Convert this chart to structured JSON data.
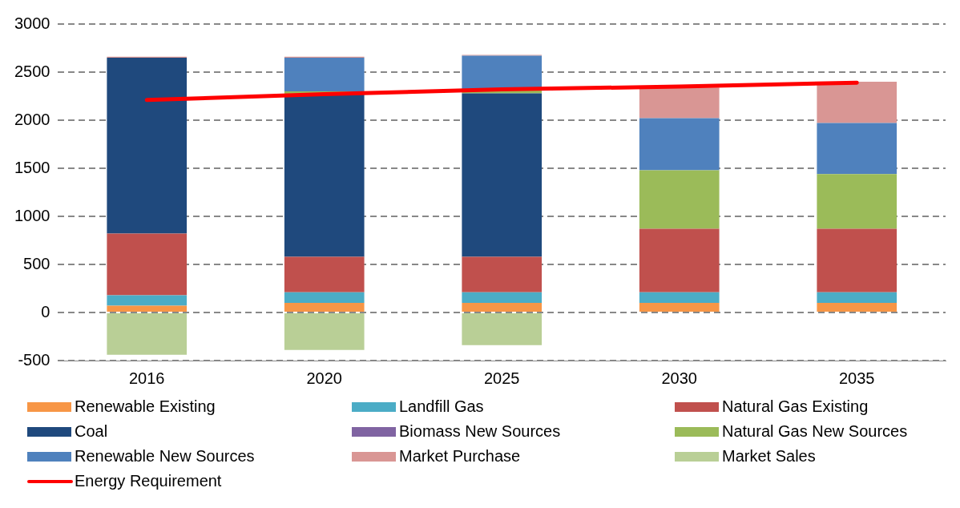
{
  "chart_data": {
    "type": "bar",
    "stacked": true,
    "categories": [
      "2016",
      "2020",
      "2025",
      "2030",
      "2035"
    ],
    "series": [
      {
        "name": "Renewable Existing",
        "color": "#f79646",
        "values": [
          70,
          100,
          100,
          100,
          100
        ]
      },
      {
        "name": "Landfill Gas",
        "color": "#4bacc6",
        "values": [
          110,
          110,
          110,
          110,
          110
        ]
      },
      {
        "name": "Natural Gas Existing",
        "color": "#c0504d",
        "values": [
          640,
          370,
          370,
          660,
          660
        ]
      },
      {
        "name": "Coal",
        "color": "#1f497d",
        "values": [
          1830,
          1690,
          1700,
          0,
          0
        ]
      },
      {
        "name": "Biomass New Sources",
        "color": "#8064a2",
        "values": [
          0,
          0,
          0,
          0,
          0
        ]
      },
      {
        "name": "Natural Gas New Sources",
        "color": "#9bbb59",
        "values": [
          0,
          30,
          30,
          610,
          570
        ]
      },
      {
        "name": "Renewable New Sources",
        "color": "#4f81bd",
        "values": [
          0,
          350,
          360,
          540,
          530
        ]
      },
      {
        "name": "Market Purchase",
        "color": "#d99694",
        "values": [
          10,
          10,
          10,
          320,
          430
        ]
      },
      {
        "name": "Market Sales",
        "color": "#b9cf96",
        "values": [
          -440,
          -390,
          -340,
          0,
          0
        ]
      },
      {
        "name": "Energy Requirement",
        "type": "line",
        "color": "#ff0000",
        "values": [
          2210,
          2270,
          2320,
          2350,
          2390
        ]
      }
    ],
    "ylim": [
      -500,
      3000
    ],
    "yticks": [
      -500,
      0,
      500,
      1000,
      1500,
      2000,
      2500,
      3000
    ],
    "grid": "y",
    "legend": "bottom",
    "marker": "none",
    "line_style": "solid"
  }
}
